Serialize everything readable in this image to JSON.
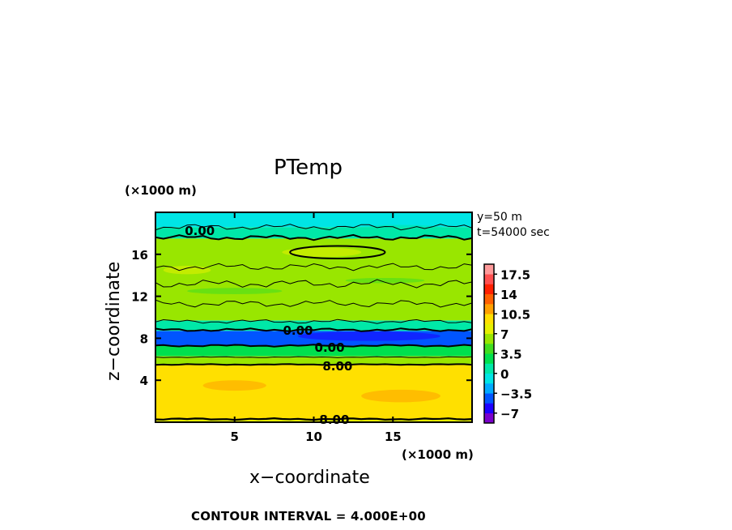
{
  "chart_data": {
    "type": "heatmap",
    "title": "PTemp",
    "xlabel": "x−coordinate",
    "ylabel": "z−coordinate",
    "x_unit": "(×1000 m)",
    "y_unit": "(×1000 m)",
    "xlim": [
      0,
      20
    ],
    "ylim": [
      0,
      20
    ],
    "x_ticks": [
      "5",
      "10",
      "15"
    ],
    "y_ticks": [
      "4",
      "8",
      "12",
      "16"
    ],
    "annotations": [
      "y=50 m",
      "t=54000 sec"
    ],
    "footer": "CONTOUR INTERVAL = 4.000E+00",
    "contour_labels": [
      "0.00",
      "0.00",
      "0.00",
      "8.00",
      "8.00"
    ],
    "colorbar": {
      "ticks": [
        "17.5",
        "14",
        "10.5",
        "7",
        "3.5",
        "0",
        "−3.5",
        "−7"
      ],
      "colors": [
        "#7a00cc",
        "#1d00ff",
        "#0055ff",
        "#00aaff",
        "#00e5e5",
        "#00e8a8",
        "#00e04e",
        "#40dd20",
        "#99e600",
        "#e6f000",
        "#ffe000",
        "#ffa000",
        "#ff6000",
        "#ff2000",
        "#ff5050",
        "#ff9a9a"
      ]
    },
    "layers": [
      {
        "z_bottom": 0,
        "z_top": 0.3,
        "value": 8.2
      },
      {
        "z_bottom": 0.3,
        "z_top": 5.5,
        "value": 10
      },
      {
        "z_bottom": 5.5,
        "z_top": 6.3,
        "value": 6.5
      },
      {
        "z_bottom": 6.3,
        "z_top": 7.3,
        "value": 2
      },
      {
        "z_bottom": 7.3,
        "z_top": 8.7,
        "value": -4
      },
      {
        "z_bottom": 8.7,
        "z_top": 9.7,
        "value": 1.5
      },
      {
        "z_bottom": 9.7,
        "z_top": 17.5,
        "value": 5.5
      },
      {
        "z_bottom": 17.5,
        "z_top": 18.6,
        "value": 1.5
      },
      {
        "z_bottom": 18.6,
        "z_top": 20,
        "value": -1
      }
    ]
  }
}
